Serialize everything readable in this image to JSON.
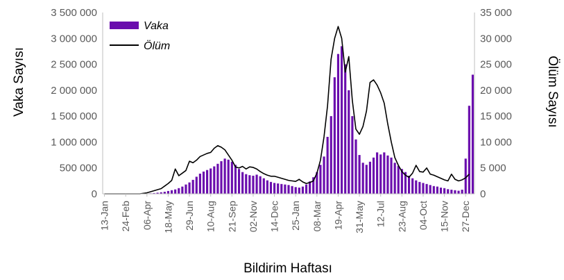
{
  "chart_data": {
    "type": "bar+line",
    "x_label": "Bildirim Haftası",
    "y_left_label": "Vaka Sayısı",
    "y_right_label": "Ölüm Sayısı",
    "y_left_range": [
      0,
      3500000
    ],
    "y_right_range": [
      0,
      35000
    ],
    "y_left_ticks": [
      "0",
      "500 000",
      "1 000 000",
      "1 500 000",
      "2 000 000",
      "2 500 000",
      "3 000 000",
      "3 500 000"
    ],
    "y_right_ticks": [
      "0",
      "5 000",
      "10 000",
      "15 000",
      "20 000",
      "25 000",
      "30 000",
      "35 000"
    ],
    "x_ticks": [
      {
        "label": "13-Jan",
        "week": 0
      },
      {
        "label": "24-Feb",
        "week": 6
      },
      {
        "label": "06-Apr",
        "week": 12
      },
      {
        "label": "18-May",
        "week": 18
      },
      {
        "label": "29-Jun",
        "week": 24
      },
      {
        "label": "10-Aug",
        "week": 30
      },
      {
        "label": "21-Sep",
        "week": 36
      },
      {
        "label": "02-Nov",
        "week": 42
      },
      {
        "label": "14-Dec",
        "week": 48
      },
      {
        "label": "25-Jan",
        "week": 54
      },
      {
        "label": "08-Mar",
        "week": 60
      },
      {
        "label": "19-Apr",
        "week": 66
      },
      {
        "label": "31-May",
        "week": 72
      },
      {
        "label": "12-Jul",
        "week": 78
      },
      {
        "label": "23-Aug",
        "week": 84
      },
      {
        "label": "04-Oct",
        "week": 90
      },
      {
        "label": "15-Nov",
        "week": 96
      },
      {
        "label": "27-Dec",
        "week": 102
      }
    ],
    "series": [
      {
        "name": "Vaka",
        "kind": "bar",
        "axis": "left",
        "color": "#6a0dad",
        "values": [
          0,
          0,
          0,
          0,
          0,
          0,
          0,
          0,
          0,
          0,
          0,
          2000,
          5000,
          10000,
          15000,
          22000,
          30000,
          40000,
          55000,
          70000,
          85000,
          110000,
          140000,
          180000,
          220000,
          270000,
          330000,
          390000,
          430000,
          460000,
          490000,
          530000,
          580000,
          630000,
          680000,
          660000,
          620000,
          560000,
          480000,
          420000,
          380000,
          360000,
          350000,
          370000,
          340000,
          300000,
          260000,
          230000,
          210000,
          200000,
          190000,
          180000,
          170000,
          150000,
          130000,
          120000,
          140000,
          180000,
          240000,
          320000,
          420000,
          560000,
          720000,
          1100000,
          1500000,
          2250000,
          2700000,
          2850000,
          2500000,
          2000000,
          1500000,
          1050000,
          750000,
          600000,
          560000,
          620000,
          700000,
          800000,
          760000,
          800000,
          740000,
          700000,
          600000,
          540000,
          480000,
          420000,
          350000,
          300000,
          260000,
          230000,
          210000,
          190000,
          170000,
          150000,
          140000,
          120000,
          110000,
          90000,
          80000,
          70000,
          60000,
          80000,
          680000,
          1700000,
          2300000
        ]
      },
      {
        "name": "Ölüm",
        "kind": "line",
        "axis": "right",
        "color": "#000000",
        "values": [
          0,
          0,
          0,
          0,
          0,
          0,
          0,
          0,
          0,
          0,
          0,
          100,
          200,
          400,
          600,
          800,
          1000,
          1500,
          2000,
          2600,
          4800,
          3500,
          4000,
          4500,
          6300,
          6000,
          6500,
          7200,
          7500,
          7800,
          8000,
          8800,
          9300,
          9000,
          8500,
          7500,
          6500,
          5200,
          5000,
          5300,
          4800,
          5200,
          5100,
          4800,
          4300,
          3900,
          3600,
          3400,
          3400,
          3200,
          3000,
          2800,
          2600,
          2500,
          2400,
          2800,
          2300,
          2000,
          2200,
          2500,
          4000,
          6500,
          11000,
          17000,
          26000,
          30000,
          32300,
          30000,
          23500,
          26500,
          18000,
          12500,
          11500,
          13000,
          16000,
          21500,
          22000,
          21000,
          19500,
          17500,
          13500,
          10000,
          7000,
          5500,
          4300,
          3600,
          3200,
          4000,
          5500,
          4300,
          4200,
          5000,
          3800,
          3600,
          3300,
          3000,
          2700,
          2500,
          3800,
          2800,
          2500,
          2700,
          3100,
          3800
        ]
      }
    ],
    "legend": {
      "position": "top-left",
      "entries": [
        "Vaka",
        "Ölüm"
      ]
    },
    "grid": false
  }
}
